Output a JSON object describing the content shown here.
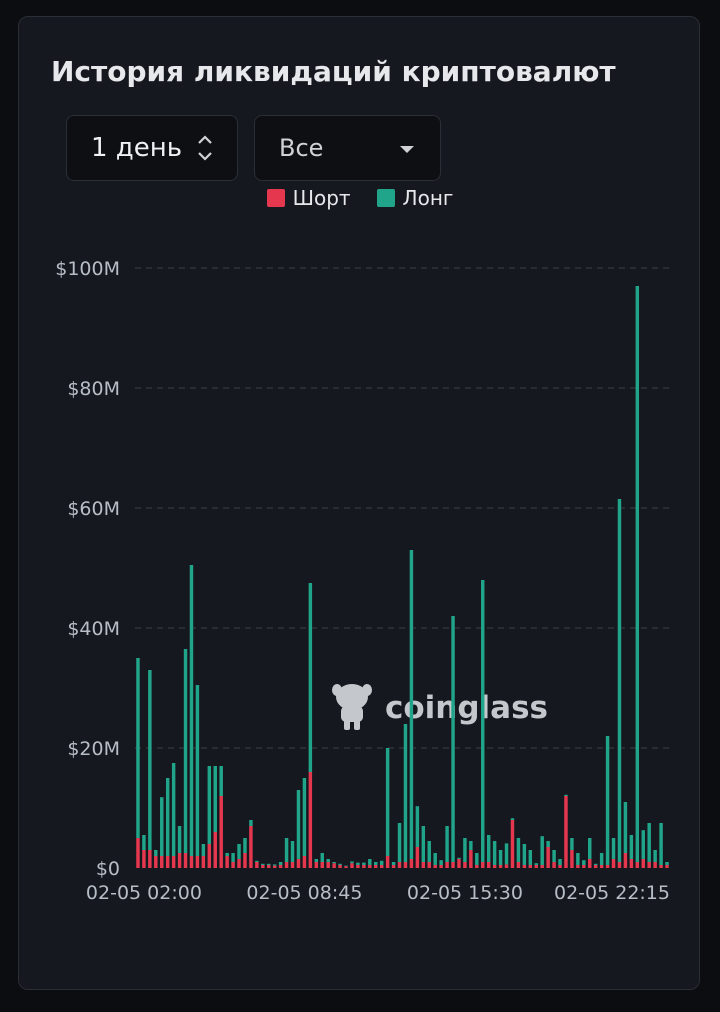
{
  "header": {
    "title": "История ликвидаций криптовалют"
  },
  "controls": {
    "period_value": "1 день",
    "type_value": "Все"
  },
  "watermark": {
    "text": "coinglass"
  },
  "colors": {
    "short": "#e5384f",
    "long": "#21a58a",
    "grid": "#3a3f48",
    "background": "#15181e"
  },
  "chart_data": {
    "type": "bar",
    "stacked": true,
    "title": "",
    "xlabel": "",
    "ylabel": "",
    "ylim": [
      0,
      100
    ],
    "y_unit": "M USD",
    "y_ticks": [
      0,
      20,
      40,
      60,
      80,
      100
    ],
    "y_tick_labels": [
      "$0",
      "$20M",
      "$40M",
      "$60M",
      "$80M",
      "$100M"
    ],
    "x_tick_labels": [
      "02-05 02:00",
      "02-05 08:45",
      "02-05 15:30",
      "02-05 22:15"
    ],
    "x_tick_indices": [
      1,
      28,
      55,
      82
    ],
    "legend": {
      "position": "top-center"
    },
    "grid": true,
    "series": [
      {
        "name": "Шорт",
        "color": "#e5384f",
        "values": [
          5.0,
          3.0,
          3.0,
          2.0,
          2.0,
          2.0,
          2.0,
          2.5,
          2.5,
          2.0,
          2.0,
          2.0,
          4.0,
          6.0,
          12.0,
          2.0,
          1.0,
          1.5,
          2.5,
          7.0,
          1.0,
          0.5,
          0.5,
          0.4,
          0.5,
          1.0,
          1.0,
          1.5,
          2.0,
          16.0,
          1.0,
          1.0,
          1.0,
          0.8,
          0.5,
          0.3,
          0.8,
          0.5,
          0.5,
          0.5,
          0.5,
          0.5,
          2.0,
          0.5,
          1.0,
          1.0,
          1.5,
          3.5,
          1.0,
          1.0,
          0.5,
          0.5,
          1.0,
          1.0,
          1.5,
          1.0,
          3.0,
          0.5,
          1.0,
          1.0,
          0.5,
          0.5,
          0.6,
          8.0,
          1.0,
          0.5,
          0.5,
          0.5,
          0.5,
          3.5,
          1.0,
          0.5,
          12.0,
          3.0,
          0.5,
          0.5,
          1.5,
          0.5,
          0.5,
          0.5,
          1.5,
          1.0,
          2.5,
          1.5,
          1.0,
          1.5,
          1.0,
          1.0,
          0.5,
          0.5
        ]
      },
      {
        "name": "Лонг",
        "color": "#21a58a",
        "values": [
          30.0,
          2.5,
          30.0,
          1.0,
          9.8,
          13.0,
          15.5,
          4.5,
          34.0,
          48.5,
          28.5,
          2.0,
          13.0,
          11.0,
          5.0,
          0.5,
          1.5,
          2.5,
          2.5,
          1.0,
          0.2,
          0.2,
          0.2,
          0.2,
          0.5,
          4.0,
          3.5,
          11.5,
          13.0,
          31.5,
          0.5,
          1.5,
          0.5,
          0.2,
          0.2,
          0.1,
          0.3,
          0.4,
          0.4,
          1.0,
          0.5,
          0.7,
          18.0,
          0.5,
          6.5,
          23.0,
          51.5,
          6.8,
          6.0,
          3.5,
          2.0,
          0.8,
          6.0,
          41.0,
          0.2,
          4.0,
          1.5,
          2.0,
          47.0,
          4.5,
          4.0,
          2.5,
          3.5,
          0.3,
          4.0,
          3.5,
          2.5,
          0.3,
          4.8,
          1.0,
          2.0,
          1.0,
          0.2,
          2.0,
          2.0,
          0.8,
          3.5,
          0.2,
          2.0,
          21.5,
          3.5,
          60.5,
          8.5,
          4.0,
          96.0,
          4.8,
          6.5,
          2.0,
          7.0,
          0.5
        ]
      }
    ]
  }
}
